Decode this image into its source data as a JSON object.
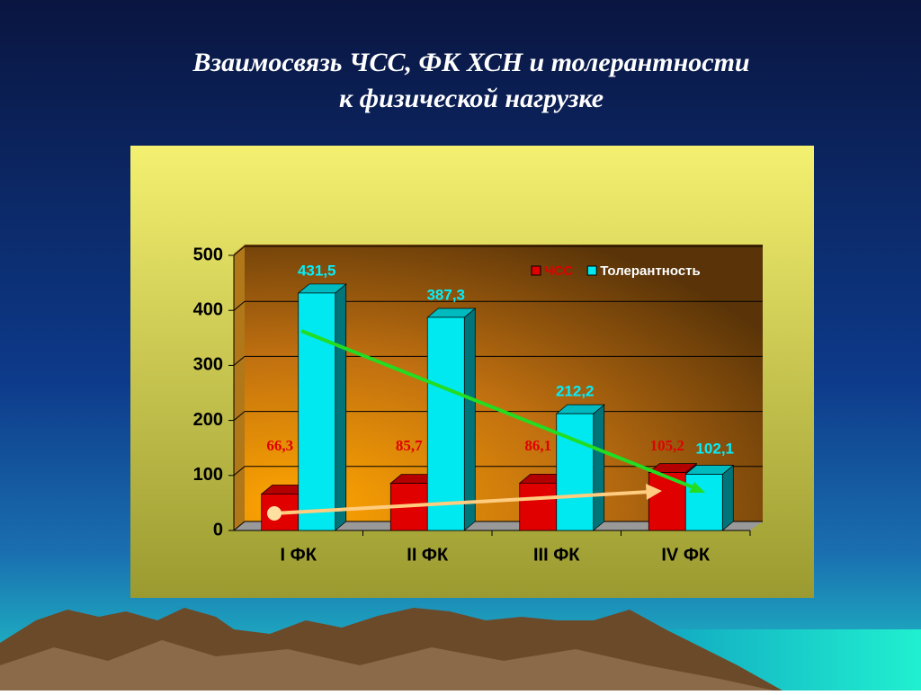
{
  "chart_data": {
    "type": "bar3d",
    "title": [
      "Взаимосвязь ЧСС, ФК ХСН и толерантности",
      "к физической нагрузке"
    ],
    "categories": [
      "I ФК",
      "II ФК",
      "III ФК",
      "IV ФК"
    ],
    "series": [
      {
        "name": "ЧСС",
        "color": "#e00000",
        "values": [
          66.3,
          85.7,
          86.1,
          105.2
        ],
        "value_labels": [
          "66,3",
          "85,7",
          "86,1",
          "105,2"
        ]
      },
      {
        "name": "Толерантность",
        "color": "#00e8f0",
        "values": [
          431.5,
          387.3,
          212.2,
          102.1
        ],
        "value_labels": [
          "431,5",
          "387,3",
          "212,2",
          "102,1"
        ]
      }
    ],
    "ylim": [
      0,
      500
    ],
    "yticks": [
      0,
      100,
      200,
      300,
      400,
      500
    ],
    "grid": true,
    "legend": "top-right"
  }
}
